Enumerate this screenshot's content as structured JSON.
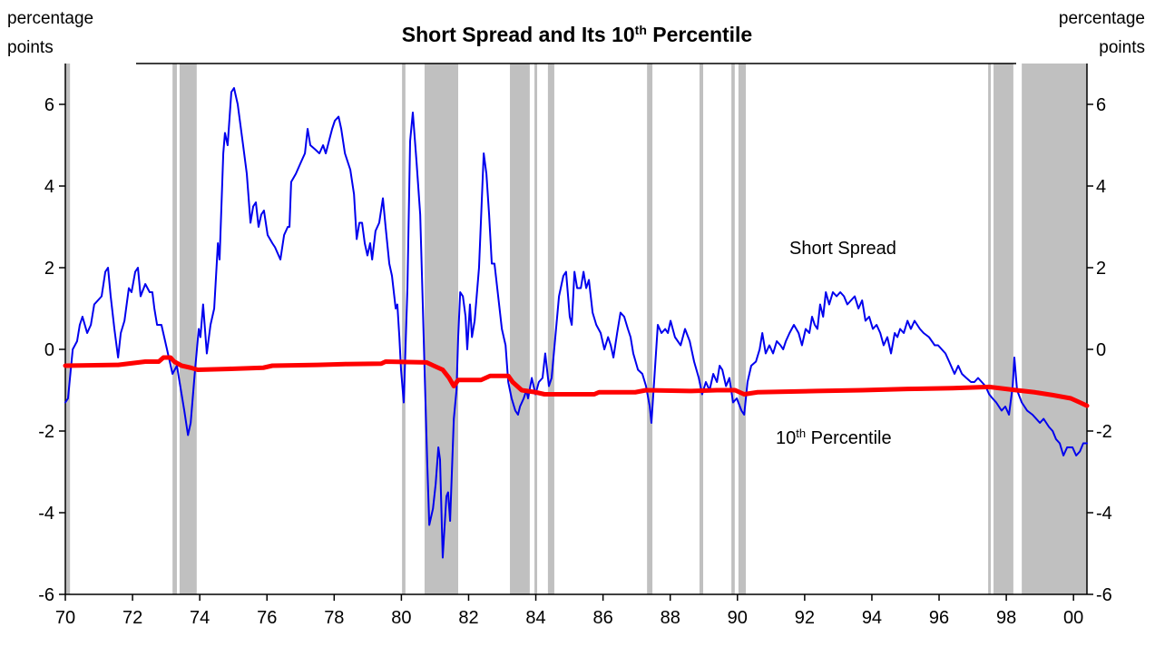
{
  "chart_data": {
    "type": "line",
    "title": [
      "Short Spread and Its 10",
      "th",
      " Percentile"
    ],
    "ylabel": [
      "percentage",
      "points"
    ],
    "y2label": [
      "percentage",
      "points"
    ],
    "annotations": [
      [
        "Short Spread"
      ],
      [
        "10",
        "th",
        " Percentile"
      ]
    ],
    "xlim": [
      1970,
      2000.4
    ],
    "ylim": [
      -6,
      7
    ],
    "y2lim": [
      -6,
      7
    ],
    "xticks": [
      {
        "value": 1970,
        "label": "70"
      },
      {
        "value": 1972,
        "label": "72"
      },
      {
        "value": 1974,
        "label": "74"
      },
      {
        "value": 1976,
        "label": "76"
      },
      {
        "value": 1978,
        "label": "78"
      },
      {
        "value": 1980,
        "label": "80"
      },
      {
        "value": 1982,
        "label": "82"
      },
      {
        "value": 1984,
        "label": "84"
      },
      {
        "value": 1986,
        "label": "86"
      },
      {
        "value": 1988,
        "label": "88"
      },
      {
        "value": 1990,
        "label": "90"
      },
      {
        "value": 1992,
        "label": "92"
      },
      {
        "value": 1994,
        "label": "94"
      },
      {
        "value": 1996,
        "label": "96"
      },
      {
        "value": 1998,
        "label": "98"
      },
      {
        "value": 2000,
        "label": "00"
      }
    ],
    "yticks": [
      -6,
      -4,
      -2,
      0,
      2,
      4,
      6
    ],
    "y2ticks": [
      -6,
      -4,
      -2,
      0,
      2,
      4,
      6
    ],
    "shade_color": "#c0c0c0",
    "shaded_regions": [
      [
        1970.0,
        1970.14
      ],
      [
        1973.19,
        1973.32
      ],
      [
        1973.4,
        1973.91
      ],
      [
        1980.02,
        1980.12
      ],
      [
        1980.69,
        1981.69
      ],
      [
        1983.23,
        1983.82
      ],
      [
        1983.96,
        1984.04
      ],
      [
        1984.36,
        1984.55
      ],
      [
        1987.31,
        1987.47
      ],
      [
        1988.87,
        1988.98
      ],
      [
        1989.82,
        1989.92
      ],
      [
        1990.03,
        1990.25
      ],
      [
        1997.46,
        1997.54
      ],
      [
        1997.62,
        1998.21
      ],
      [
        1998.46,
        2000.4
      ]
    ],
    "series": [
      {
        "color": "#0000ee",
        "width": 2,
        "x": [
          1970.0,
          1970.08,
          1970.22,
          1970.35,
          1970.43,
          1970.51,
          1970.65,
          1970.76,
          1970.86,
          1970.97,
          1971.08,
          1971.19,
          1971.27,
          1971.35,
          1971.46,
          1971.57,
          1971.65,
          1971.76,
          1971.89,
          1971.97,
          1972.08,
          1972.16,
          1972.24,
          1972.38,
          1972.51,
          1972.59,
          1972.65,
          1972.73,
          1972.86,
          1972.97,
          1973.19,
          1973.32,
          1973.54,
          1973.65,
          1973.73,
          1973.86,
          1973.97,
          1974.02,
          1974.1,
          1974.21,
          1974.32,
          1974.43,
          1974.54,
          1974.59,
          1974.7,
          1974.75,
          1974.83,
          1974.94,
          1975.02,
          1975.13,
          1975.29,
          1975.4,
          1975.51,
          1975.59,
          1975.67,
          1975.75,
          1975.83,
          1975.91,
          1976.02,
          1976.16,
          1976.24,
          1976.4,
          1976.51,
          1976.62,
          1976.67,
          1976.72,
          1976.86,
          1977.02,
          1977.13,
          1977.21,
          1977.29,
          1977.43,
          1977.56,
          1977.67,
          1977.75,
          1977.94,
          1978.02,
          1978.13,
          1978.21,
          1978.32,
          1978.48,
          1978.59,
          1978.67,
          1978.75,
          1978.83,
          1978.91,
          1978.99,
          1979.07,
          1979.13,
          1979.23,
          1979.34,
          1979.45,
          1979.53,
          1979.64,
          1979.72,
          1979.83,
          1979.88,
          1979.94,
          1979.99,
          1980.07,
          1980.18,
          1980.26,
          1980.34,
          1980.45,
          1980.56,
          1980.64,
          1980.69,
          1980.77,
          1980.83,
          1980.94,
          1981.02,
          1981.1,
          1981.15,
          1981.23,
          1981.34,
          1981.39,
          1981.45,
          1981.56,
          1981.64,
          1981.69,
          1981.75,
          1981.83,
          1981.91,
          1981.96,
          1982.04,
          1982.1,
          1982.18,
          1982.31,
          1982.45,
          1982.53,
          1982.61,
          1982.69,
          1982.77,
          1982.88,
          1982.99,
          1983.1,
          1983.18,
          1983.28,
          1983.39,
          1983.47,
          1983.53,
          1983.64,
          1983.72,
          1983.77,
          1983.88,
          1983.99,
          1984.09,
          1984.2,
          1984.28,
          1984.39,
          1984.47,
          1984.58,
          1984.69,
          1984.82,
          1984.9,
          1985.01,
          1985.07,
          1985.15,
          1985.23,
          1985.34,
          1985.42,
          1985.5,
          1985.58,
          1985.69,
          1985.8,
          1985.93,
          1986.04,
          1986.15,
          1986.23,
          1986.31,
          1986.42,
          1986.52,
          1986.63,
          1986.74,
          1986.82,
          1986.9,
          1987.04,
          1987.17,
          1987.28,
          1987.39,
          1987.44,
          1987.52,
          1987.63,
          1987.74,
          1987.85,
          1987.93,
          1988.01,
          1988.14,
          1988.31,
          1988.44,
          1988.58,
          1988.71,
          1988.85,
          1988.95,
          1989.06,
          1989.17,
          1989.28,
          1989.39,
          1989.47,
          1989.55,
          1989.66,
          1989.76,
          1989.87,
          1989.98,
          1990.12,
          1990.2,
          1990.3,
          1990.41,
          1990.55,
          1990.66,
          1990.74,
          1990.84,
          1990.95,
          1991.06,
          1991.17,
          1991.28,
          1991.36,
          1991.44,
          1991.55,
          1991.68,
          1991.82,
          1991.92,
          1992.03,
          1992.14,
          1992.22,
          1992.3,
          1992.38,
          1992.46,
          1992.55,
          1992.63,
          1992.73,
          1992.84,
          1992.95,
          1993.06,
          1993.17,
          1993.27,
          1993.38,
          1993.49,
          1993.6,
          1993.71,
          1993.81,
          1993.92,
          1994.03,
          1994.14,
          1994.25,
          1994.35,
          1994.46,
          1994.57,
          1994.68,
          1994.76,
          1994.84,
          1994.95,
          1995.06,
          1995.16,
          1995.27,
          1995.43,
          1995.54,
          1995.7,
          1995.87,
          1995.97,
          1996.08,
          1996.19,
          1996.3,
          1996.46,
          1996.57,
          1996.68,
          1996.81,
          1996.95,
          1997.05,
          1997.16,
          1997.27,
          1997.38,
          1997.49,
          1997.59,
          1997.7,
          1997.86,
          1997.97,
          1998.08,
          1998.19,
          1998.24,
          1998.32,
          1998.46,
          1998.62,
          1998.78,
          1999.0,
          1999.11,
          1999.27,
          1999.38,
          1999.48,
          1999.59,
          1999.7,
          1999.81,
          1999.97,
          2000.08,
          2000.19,
          2000.29,
          2000.4
        ],
        "values": [
          -1.3,
          -1.2,
          0.0,
          0.2,
          0.6,
          0.8,
          0.4,
          0.6,
          1.1,
          1.2,
          1.3,
          1.9,
          2.0,
          1.3,
          0.5,
          -0.2,
          0.4,
          0.7,
          1.5,
          1.4,
          1.9,
          2.0,
          1.3,
          1.6,
          1.4,
          1.4,
          1.0,
          0.6,
          0.6,
          0.2,
          -0.6,
          -0.4,
          -1.5,
          -2.1,
          -1.8,
          -0.5,
          0.5,
          0.3,
          1.1,
          -0.1,
          0.6,
          1.0,
          2.6,
          2.2,
          4.8,
          5.3,
          5.0,
          6.3,
          6.4,
          6.0,
          5.0,
          4.3,
          3.1,
          3.5,
          3.6,
          3.0,
          3.3,
          3.4,
          2.8,
          2.6,
          2.5,
          2.2,
          2.8,
          3.0,
          3.0,
          4.1,
          4.3,
          4.6,
          4.8,
          5.4,
          5.0,
          4.9,
          4.8,
          5.0,
          4.8,
          5.4,
          5.6,
          5.7,
          5.4,
          4.8,
          4.4,
          3.8,
          2.7,
          3.1,
          3.1,
          2.6,
          2.3,
          2.6,
          2.2,
          2.9,
          3.1,
          3.7,
          3.0,
          2.1,
          1.8,
          1.0,
          1.1,
          0.3,
          -0.5,
          -1.3,
          1.5,
          5.1,
          5.8,
          4.6,
          3.3,
          1.0,
          -0.5,
          -2.8,
          -4.3,
          -3.9,
          -3.3,
          -2.4,
          -2.7,
          -5.1,
          -3.6,
          -3.5,
          -4.2,
          -1.7,
          -1.0,
          0.3,
          1.4,
          1.3,
          0.8,
          0.0,
          1.1,
          0.3,
          0.7,
          2.0,
          4.8,
          4.3,
          3.3,
          2.1,
          2.1,
          1.3,
          0.5,
          0.1,
          -0.8,
          -1.2,
          -1.5,
          -1.6,
          -1.4,
          -1.2,
          -1.0,
          -1.2,
          -0.7,
          -1.1,
          -0.8,
          -0.7,
          -0.1,
          -0.9,
          -0.7,
          0.3,
          1.3,
          1.8,
          1.9,
          0.8,
          0.6,
          1.9,
          1.5,
          1.5,
          1.9,
          1.5,
          1.7,
          0.9,
          0.6,
          0.4,
          0.0,
          0.3,
          0.1,
          -0.2,
          0.4,
          0.9,
          0.8,
          0.5,
          0.3,
          -0.1,
          -0.5,
          -0.6,
          -0.9,
          -1.4,
          -1.8,
          -0.8,
          0.6,
          0.4,
          0.5,
          0.4,
          0.7,
          0.3,
          0.1,
          0.5,
          0.2,
          -0.3,
          -0.7,
          -1.1,
          -0.8,
          -1.0,
          -0.6,
          -0.8,
          -0.4,
          -0.5,
          -0.9,
          -0.7,
          -1.3,
          -1.2,
          -1.5,
          -1.6,
          -0.8,
          -0.4,
          -0.3,
          0.0,
          0.4,
          -0.1,
          0.1,
          -0.1,
          0.2,
          0.1,
          0.0,
          0.2,
          0.4,
          0.6,
          0.4,
          0.1,
          0.5,
          0.4,
          0.8,
          0.6,
          0.5,
          1.1,
          0.8,
          1.4,
          1.1,
          1.4,
          1.3,
          1.4,
          1.3,
          1.1,
          1.2,
          1.3,
          1.0,
          1.2,
          0.7,
          0.8,
          0.5,
          0.6,
          0.4,
          0.1,
          0.3,
          -0.1,
          0.4,
          0.3,
          0.5,
          0.4,
          0.7,
          0.5,
          0.7,
          0.5,
          0.4,
          0.3,
          0.1,
          0.1,
          0.0,
          -0.1,
          -0.3,
          -0.6,
          -0.4,
          -0.6,
          -0.7,
          -0.8,
          -0.8,
          -0.7,
          -0.8,
          -0.9,
          -1.1,
          -1.2,
          -1.3,
          -1.5,
          -1.4,
          -1.6,
          -0.9,
          -0.2,
          -1.0,
          -1.3,
          -1.5,
          -1.6,
          -1.8,
          -1.7,
          -1.9,
          -2.0,
          -2.2,
          -2.3,
          -2.6,
          -2.4,
          -2.4,
          -2.6,
          -2.5,
          -2.3,
          -2.3
        ]
      },
      {
        "color": "#ff0000",
        "width": 5,
        "x": [
          1970.0,
          1971.57,
          1972.38,
          1972.78,
          1972.92,
          1973.13,
          1973.24,
          1973.46,
          1973.73,
          1973.94,
          1974.81,
          1975.89,
          1976.16,
          1977.51,
          1978.32,
          1979.4,
          1979.53,
          1980.75,
          1980.96,
          1981.23,
          1981.42,
          1981.56,
          1981.69,
          1982.37,
          1982.64,
          1983.18,
          1983.31,
          1983.58,
          1983.99,
          1984.26,
          1984.53,
          1985.74,
          1985.88,
          1986.96,
          1987.28,
          1988.58,
          1989.39,
          1989.93,
          1990.2,
          1990.6,
          1992.36,
          1993.71,
          1995.06,
          1996.41,
          1997.49,
          1998.3,
          1998.84,
          1999.38,
          1999.92,
          2000.19,
          2000.4
        ],
        "values": [
          -0.4,
          -0.38,
          -0.3,
          -0.3,
          -0.2,
          -0.2,
          -0.3,
          -0.4,
          -0.45,
          -0.5,
          -0.48,
          -0.45,
          -0.4,
          -0.38,
          -0.36,
          -0.35,
          -0.3,
          -0.32,
          -0.4,
          -0.5,
          -0.7,
          -0.9,
          -0.75,
          -0.75,
          -0.65,
          -0.65,
          -0.8,
          -1.0,
          -1.05,
          -1.1,
          -1.1,
          -1.1,
          -1.05,
          -1.05,
          -1.0,
          -1.02,
          -1.0,
          -1.0,
          -1.1,
          -1.05,
          -1.02,
          -1.0,
          -0.97,
          -0.95,
          -0.92,
          -1.0,
          -1.05,
          -1.12,
          -1.2,
          -1.3,
          -1.38
        ]
      }
    ]
  }
}
